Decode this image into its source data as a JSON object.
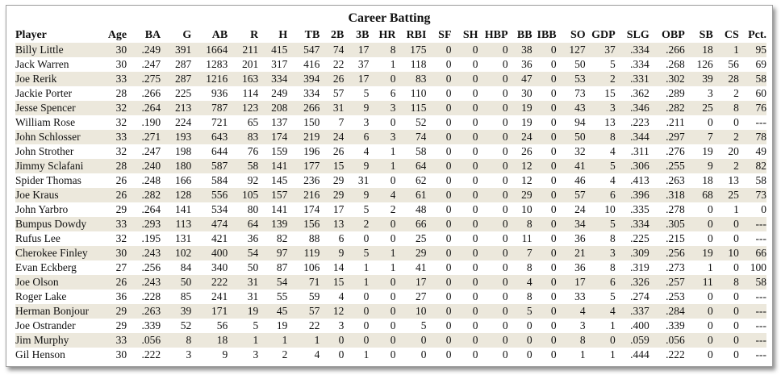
{
  "title": "Career Batting",
  "columns": [
    "Player",
    "Age",
    "BA",
    "G",
    "AB",
    "R",
    "H",
    "TB",
    "2B",
    "3B",
    "HR",
    "RBI",
    "SF",
    "SH",
    "HBP",
    "BB",
    "IBB",
    "SO",
    "GDP",
    "SLG",
    "OBP",
    "SB",
    "CS",
    "Pct."
  ],
  "rows": [
    [
      "Billy Little",
      "30",
      ".249",
      "391",
      "1664",
      "211",
      "415",
      "547",
      "74",
      "17",
      "8",
      "175",
      "0",
      "0",
      "0",
      "38",
      "0",
      "127",
      "37",
      ".334",
      ".266",
      "18",
      "1",
      "95"
    ],
    [
      "Jack Warren",
      "30",
      ".247",
      "287",
      "1283",
      "201",
      "317",
      "416",
      "22",
      "37",
      "1",
      "118",
      "0",
      "0",
      "0",
      "36",
      "0",
      "50",
      "5",
      ".334",
      ".268",
      "126",
      "56",
      "69"
    ],
    [
      "Joe Rerik",
      "33",
      ".275",
      "287",
      "1216",
      "163",
      "334",
      "394",
      "26",
      "17",
      "0",
      "83",
      "0",
      "0",
      "0",
      "47",
      "0",
      "53",
      "2",
      ".331",
      ".302",
      "39",
      "28",
      "58"
    ],
    [
      "Jackie Porter",
      "28",
      ".266",
      "225",
      "936",
      "114",
      "249",
      "334",
      "57",
      "5",
      "6",
      "110",
      "0",
      "0",
      "0",
      "30",
      "0",
      "73",
      "15",
      ".362",
      ".289",
      "3",
      "2",
      "60"
    ],
    [
      "Jesse Spencer",
      "32",
      ".264",
      "213",
      "787",
      "123",
      "208",
      "266",
      "31",
      "9",
      "3",
      "115",
      "0",
      "0",
      "0",
      "19",
      "0",
      "43",
      "3",
      ".346",
      ".282",
      "25",
      "8",
      "76"
    ],
    [
      "William Rose",
      "32",
      ".190",
      "224",
      "721",
      "65",
      "137",
      "150",
      "7",
      "3",
      "0",
      "52",
      "0",
      "0",
      "0",
      "19",
      "0",
      "94",
      "13",
      ".223",
      ".211",
      "0",
      "0",
      "---"
    ],
    [
      "John Schlosser",
      "33",
      ".271",
      "193",
      "643",
      "83",
      "174",
      "219",
      "24",
      "6",
      "3",
      "74",
      "0",
      "0",
      "0",
      "24",
      "0",
      "50",
      "8",
      ".344",
      ".297",
      "7",
      "2",
      "78"
    ],
    [
      "John Strother",
      "32",
      ".247",
      "198",
      "644",
      "76",
      "159",
      "196",
      "26",
      "4",
      "1",
      "58",
      "0",
      "0",
      "0",
      "26",
      "0",
      "32",
      "4",
      ".311",
      ".276",
      "19",
      "20",
      "49"
    ],
    [
      "Jimmy Sclafani",
      "28",
      ".240",
      "180",
      "587",
      "58",
      "141",
      "177",
      "15",
      "9",
      "1",
      "64",
      "0",
      "0",
      "0",
      "12",
      "0",
      "41",
      "5",
      ".306",
      ".255",
      "9",
      "2",
      "82"
    ],
    [
      "Spider Thomas",
      "26",
      ".248",
      "166",
      "584",
      "92",
      "145",
      "236",
      "29",
      "31",
      "0",
      "62",
      "0",
      "0",
      "0",
      "12",
      "0",
      "46",
      "4",
      ".413",
      ".263",
      "18",
      "13",
      "58"
    ],
    [
      "Joe Kraus",
      "26",
      ".282",
      "128",
      "556",
      "105",
      "157",
      "216",
      "29",
      "9",
      "4",
      "61",
      "0",
      "0",
      "0",
      "29",
      "0",
      "57",
      "6",
      ".396",
      ".318",
      "68",
      "25",
      "73"
    ],
    [
      "John Yarbro",
      "29",
      ".264",
      "141",
      "534",
      "80",
      "141",
      "174",
      "17",
      "5",
      "2",
      "48",
      "0",
      "0",
      "0",
      "10",
      "0",
      "24",
      "10",
      ".335",
      ".278",
      "0",
      "1",
      "0"
    ],
    [
      "Bumpus Dowdy",
      "33",
      ".293",
      "113",
      "474",
      "64",
      "139",
      "156",
      "13",
      "2",
      "0",
      "66",
      "0",
      "0",
      "0",
      "8",
      "0",
      "34",
      "5",
      ".334",
      ".305",
      "0",
      "0",
      "---"
    ],
    [
      "Rufus Lee",
      "32",
      ".195",
      "131",
      "421",
      "36",
      "82",
      "88",
      "6",
      "0",
      "0",
      "25",
      "0",
      "0",
      "0",
      "11",
      "0",
      "36",
      "8",
      ".225",
      ".215",
      "0",
      "0",
      "---"
    ],
    [
      "Cherokee Finley",
      "30",
      ".243",
      "102",
      "400",
      "54",
      "97",
      "119",
      "9",
      "5",
      "1",
      "29",
      "0",
      "0",
      "0",
      "7",
      "0",
      "21",
      "3",
      ".309",
      ".256",
      "19",
      "10",
      "66"
    ],
    [
      "Evan Eckberg",
      "27",
      ".256",
      "84",
      "340",
      "50",
      "87",
      "106",
      "14",
      "1",
      "1",
      "41",
      "0",
      "0",
      "0",
      "8",
      "0",
      "36",
      "8",
      ".319",
      ".273",
      "1",
      "0",
      "100"
    ],
    [
      "Joe Olson",
      "26",
      ".243",
      "50",
      "222",
      "31",
      "54",
      "71",
      "15",
      "1",
      "0",
      "17",
      "0",
      "0",
      "0",
      "4",
      "0",
      "17",
      "6",
      ".326",
      ".257",
      "11",
      "8",
      "58"
    ],
    [
      "Roger Lake",
      "36",
      ".228",
      "85",
      "241",
      "31",
      "55",
      "59",
      "4",
      "0",
      "0",
      "27",
      "0",
      "0",
      "0",
      "8",
      "0",
      "33",
      "5",
      ".274",
      ".253",
      "0",
      "0",
      "---"
    ],
    [
      "Herman Bonjour",
      "29",
      ".263",
      "39",
      "171",
      "19",
      "45",
      "57",
      "12",
      "0",
      "0",
      "10",
      "0",
      "0",
      "0",
      "5",
      "0",
      "4",
      "4",
      ".337",
      ".284",
      "0",
      "0",
      "---"
    ],
    [
      "Joe Ostrander",
      "29",
      ".339",
      "52",
      "56",
      "5",
      "19",
      "22",
      "3",
      "0",
      "0",
      "5",
      "0",
      "0",
      "0",
      "0",
      "0",
      "3",
      "1",
      ".400",
      ".339",
      "0",
      "0",
      "---"
    ],
    [
      "Jim Murphy",
      "33",
      ".056",
      "8",
      "18",
      "1",
      "1",
      "1",
      "0",
      "0",
      "0",
      "0",
      "0",
      "0",
      "0",
      "0",
      "0",
      "8",
      "0",
      ".059",
      ".056",
      "0",
      "0",
      "---"
    ],
    [
      "Gil Henson",
      "30",
      ".222",
      "3",
      "9",
      "3",
      "2",
      "4",
      "0",
      "1",
      "0",
      "0",
      "0",
      "0",
      "0",
      "0",
      "0",
      "1",
      "1",
      ".444",
      ".222",
      "0",
      "0",
      "---"
    ]
  ]
}
